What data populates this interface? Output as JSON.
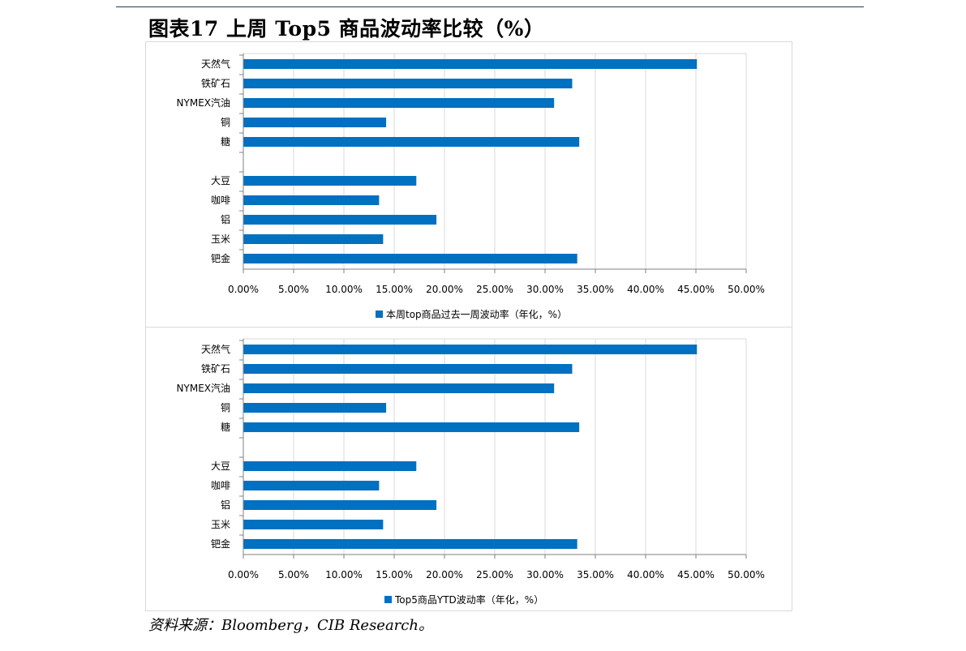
{
  "title": "图表17   上周 Top5 商品波动率比较（%）",
  "source": "资料来源：Bloomberg，CIB Research。",
  "colors": {
    "bar": "#0070c0",
    "grid": "#d9d9d9",
    "axis": "#808080"
  },
  "chart_data": [
    {
      "type": "bar",
      "orientation": "horizontal",
      "categories": [
        "天然气",
        "铁矿石",
        "NYMEX汽油",
        "铜",
        "糖",
        "",
        "大豆",
        "咖啡",
        "铝",
        "玉米",
        "钯金"
      ],
      "series": [
        {
          "name": "本周top商品过去一周波动率（年化，%）",
          "values": [
            45.1,
            32.7,
            30.9,
            14.2,
            33.4,
            null,
            17.2,
            13.5,
            19.2,
            13.9,
            33.2
          ]
        }
      ],
      "xlim": [
        0,
        50
      ],
      "xticks": [
        "0.00%",
        "5.00%",
        "10.00%",
        "15.00%",
        "20.00%",
        "25.00%",
        "30.00%",
        "35.00%",
        "40.00%",
        "45.00%",
        "50.00%"
      ],
      "grid": true,
      "legend": "bottom"
    },
    {
      "type": "bar",
      "orientation": "horizontal",
      "categories": [
        "天然气",
        "铁矿石",
        "NYMEX汽油",
        "铜",
        "糖",
        "",
        "大豆",
        "咖啡",
        "铝",
        "玉米",
        "钯金"
      ],
      "series": [
        {
          "name": "Top5商品YTD波动率（年化，%）",
          "values": [
            45.1,
            32.7,
            30.9,
            14.2,
            33.4,
            null,
            17.2,
            13.5,
            19.2,
            13.9,
            33.2
          ]
        }
      ],
      "xlim": [
        0,
        50
      ],
      "xticks": [
        "0.00%",
        "5.00%",
        "10.00%",
        "15.00%",
        "20.00%",
        "25.00%",
        "30.00%",
        "35.00%",
        "40.00%",
        "45.00%",
        "50.00%"
      ],
      "grid": true,
      "legend": "bottom"
    }
  ]
}
